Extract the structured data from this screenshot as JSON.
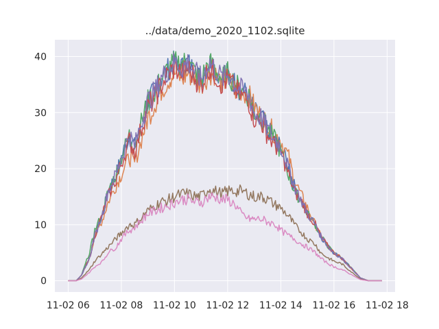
{
  "chart_data": {
    "type": "line",
    "title": "../data/demo_2020_1102.sqlite",
    "xlabel": "",
    "ylabel": "",
    "x_ticks": [
      "11-02 06",
      "11-02 08",
      "11-02 10",
      "11-02 12",
      "11-02 14",
      "11-02 16",
      "11-02 18"
    ],
    "y_ticks": [
      "0",
      "10",
      "20",
      "30",
      "40"
    ],
    "ylim": [
      -2,
      43
    ],
    "xlim_hours": [
      5.5,
      18.3
    ],
    "grid": true,
    "background": "#eaeaf2",
    "x_hours": [
      6.0,
      6.3,
      6.5,
      6.8,
      7.0,
      7.3,
      7.5,
      7.8,
      8.0,
      8.3,
      8.5,
      8.8,
      9.0,
      9.3,
      9.5,
      9.8,
      10.0,
      10.3,
      10.5,
      10.8,
      11.0,
      11.3,
      11.5,
      11.8,
      12.0,
      12.3,
      12.5,
      12.8,
      13.0,
      13.3,
      13.5,
      13.8,
      14.0,
      14.3,
      14.5,
      14.8,
      15.0,
      15.3,
      15.5,
      15.8,
      16.0,
      16.3,
      16.5,
      16.8,
      17.0,
      17.3,
      17.5,
      17.8
    ],
    "series": [
      {
        "color": "#4c72b0",
        "values": [
          0,
          0,
          1,
          4,
          8,
          12,
          16,
          19,
          22,
          26,
          24,
          29,
          32,
          34,
          36,
          38,
          39,
          38,
          39,
          37,
          36,
          39,
          38,
          36,
          37,
          35,
          34,
          33,
          30,
          29,
          27,
          25,
          24,
          20,
          17,
          14,
          12,
          10,
          8,
          6,
          5,
          4,
          3,
          1.5,
          0.5,
          0,
          0,
          0
        ]
      },
      {
        "color": "#dd8452",
        "values": [
          0,
          0,
          1,
          4,
          8,
          11,
          14,
          17,
          19,
          22,
          21,
          26,
          29,
          32,
          34,
          36,
          37,
          36,
          37,
          36,
          35,
          37,
          37,
          35,
          36,
          34,
          34,
          33,
          31,
          29,
          28,
          26,
          25,
          22,
          18,
          15,
          13,
          10,
          8,
          6,
          5,
          4,
          3,
          1.5,
          0.5,
          0,
          0,
          0
        ]
      },
      {
        "color": "#55a868",
        "values": [
          0,
          0,
          1,
          5,
          9,
          12,
          16,
          19,
          22,
          26,
          24,
          29,
          32,
          34,
          36,
          38,
          39,
          39,
          39,
          37,
          36,
          39,
          38,
          36,
          37,
          35,
          34,
          33,
          30,
          29,
          27,
          25,
          23,
          19,
          16,
          14,
          12,
          10,
          8,
          6,
          5,
          4,
          3,
          1.5,
          0.5,
          0,
          0,
          0
        ]
      },
      {
        "color": "#c44e52",
        "values": [
          0,
          0,
          1,
          4,
          8,
          12,
          15,
          18,
          21,
          25,
          23,
          28,
          31,
          33,
          35,
          37,
          38,
          37,
          38,
          36,
          35,
          38,
          37,
          35,
          36,
          34,
          33,
          32,
          29,
          28,
          26,
          24,
          23,
          19,
          16,
          14,
          12,
          10,
          8,
          6,
          5,
          4,
          3,
          1.5,
          0.5,
          0,
          0,
          0
        ]
      },
      {
        "color": "#8172b3",
        "values": [
          0,
          0,
          1,
          4,
          8,
          12,
          16,
          19,
          22,
          26,
          24,
          29,
          32,
          34,
          36,
          38,
          39,
          38,
          39,
          37,
          36,
          39,
          38,
          36,
          37,
          35,
          34,
          33,
          30,
          29,
          27,
          25,
          24,
          20,
          17,
          14,
          12,
          10,
          8,
          6,
          5,
          4,
          3,
          1.5,
          0.5,
          0,
          0,
          0
        ]
      },
      {
        "color": "#937860",
        "values": [
          0,
          0,
          0.5,
          2,
          3.5,
          5,
          6,
          7.5,
          8.5,
          10,
          10,
          11.5,
          12.5,
          13.5,
          14,
          14.5,
          15,
          15.5,
          15.5,
          15,
          15,
          16.5,
          16,
          15.5,
          16,
          16,
          16,
          15.5,
          15,
          15,
          14.5,
          13.5,
          13,
          11.5,
          10,
          8.5,
          7.5,
          6.5,
          5,
          4,
          3.5,
          3,
          2.2,
          1,
          0.3,
          0,
          0,
          0
        ]
      },
      {
        "color": "#da8bc3",
        "values": [
          0,
          0,
          0.3,
          1.5,
          2.5,
          3.5,
          5,
          6,
          7.5,
          9,
          9.5,
          11,
          12,
          12.5,
          13,
          13.5,
          14,
          14.5,
          14.5,
          14,
          14,
          15,
          15,
          14.5,
          14.5,
          13.5,
          12,
          11,
          11,
          11,
          10.5,
          10,
          9,
          8,
          7.5,
          6.5,
          6,
          5,
          4,
          3,
          2.5,
          2,
          1.5,
          0.7,
          0.2,
          0,
          0,
          0
        ]
      }
    ]
  }
}
